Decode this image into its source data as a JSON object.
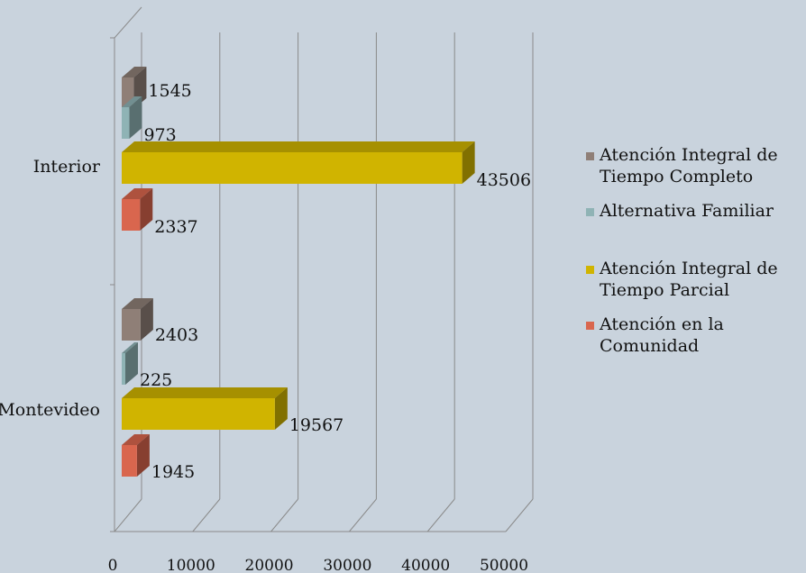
{
  "chart_data": {
    "type": "bar",
    "orientation": "horizontal",
    "three_d": true,
    "categories": [
      "Interior",
      "Montevideo"
    ],
    "series": [
      {
        "name": "Atención Integral de Tiempo Completo",
        "values": [
          1545,
          2403
        ],
        "color": "#8f7f77"
      },
      {
        "name": "Alternativa Familiar",
        "values": [
          973,
          225
        ],
        "color": "#8fb3b5"
      },
      {
        "name": "Atención Integral de Tiempo Parcial",
        "values": [
          43506,
          19567
        ],
        "color": "#d0b400"
      },
      {
        "name": "Atención en la Comunidad",
        "values": [
          2337,
          1945
        ],
        "color": "#d9664e"
      }
    ],
    "xlim": [
      0,
      50000
    ],
    "x_ticks": [
      "0",
      "10000",
      "20000",
      "30000",
      "40000",
      "50000"
    ],
    "grid": true,
    "legend_position": "right"
  }
}
